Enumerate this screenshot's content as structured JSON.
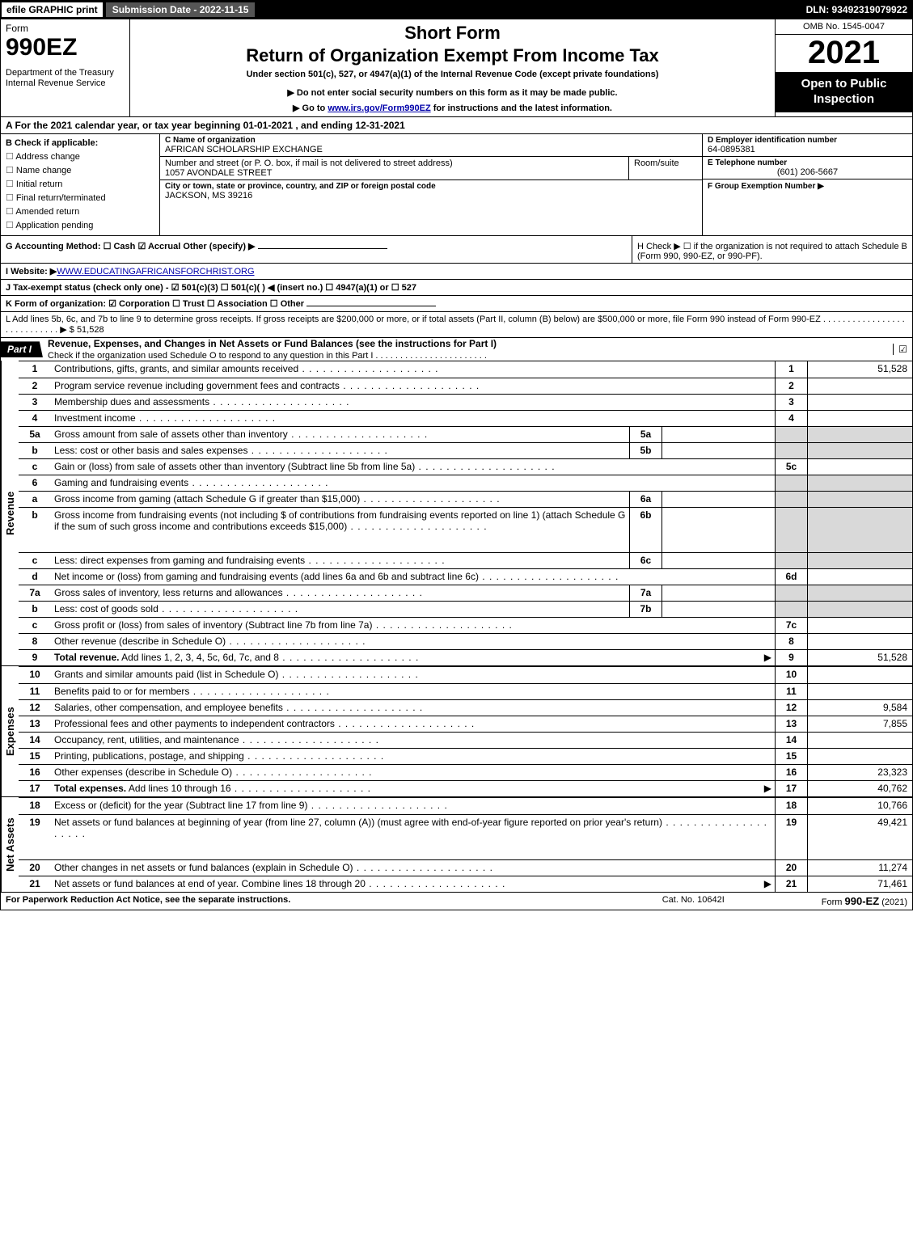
{
  "topbar": {
    "efile": "efile GRAPHIC print",
    "submission": "Submission Date - 2022-11-15",
    "dln": "DLN: 93492319079922"
  },
  "header": {
    "form_word": "Form",
    "form_number": "990EZ",
    "dept": "Department of the Treasury\nInternal Revenue Service",
    "short": "Short Form",
    "title": "Return of Organization Exempt From Income Tax",
    "sub1": "Under section 501(c), 527, or 4947(a)(1) of the Internal Revenue Code (except private foundations)",
    "sub2": "▶ Do not enter social security numbers on this form as it may be made public.",
    "sub3_pre": "▶ Go to ",
    "sub3_link": "www.irs.gov/Form990EZ",
    "sub3_post": " for instructions and the latest information.",
    "omb": "OMB No. 1545-0047",
    "year": "2021",
    "open": "Open to Public Inspection"
  },
  "A": "A  For the 2021 calendar year, or tax year beginning 01-01-2021 , and ending 12-31-2021",
  "B": {
    "label": "B  Check if applicable:",
    "opts": [
      "Address change",
      "Name change",
      "Initial return",
      "Final return/terminated",
      "Amended return",
      "Application pending"
    ]
  },
  "C": {
    "name_cap": "C Name of organization",
    "name": "AFRICAN SCHOLARSHIP EXCHANGE",
    "street_cap": "Number and street (or P. O. box, if mail is not delivered to street address)",
    "room_cap": "Room/suite",
    "street": "1057 AVONDALE STREET",
    "city_cap": "City or town, state or province, country, and ZIP or foreign postal code",
    "city": "JACKSON, MS  39216"
  },
  "D": {
    "cap": "D Employer identification number",
    "val": "64-0895381"
  },
  "E": {
    "cap": "E Telephone number",
    "val": "(601) 206-5667"
  },
  "F": {
    "cap": "F Group Exemption Number   ▶",
    "val": ""
  },
  "G": "G Accounting Method:   ☐ Cash   ☑ Accrual   Other (specify) ▶",
  "H": "H   Check ▶  ☐  if the organization is not required to attach Schedule B (Form 990, 990-EZ, or 990-PF).",
  "I": {
    "pre": "I Website: ▶",
    "link": "WWW.EDUCATINGAFRICANSFORCHRIST.ORG"
  },
  "J": "J Tax-exempt status (check only one) -  ☑ 501(c)(3)  ☐ 501(c)(  ) ◀ (insert no.)  ☐ 4947(a)(1) or  ☐ 527",
  "K": "K Form of organization:   ☑ Corporation   ☐ Trust   ☐ Association   ☐ Other",
  "L": {
    "text": "L Add lines 5b, 6c, and 7b to line 9 to determine gross receipts. If gross receipts are $200,000 or more, or if total assets (Part II, column (B) below) are $500,000 or more, file Form 990 instead of Form 990-EZ  .  .  .  .  .  .  .  .  .  .  .  .  .  .  .  .  .  .  .  .  .  .  .  .  .  .  .  .  ▶ $",
    "val": "51,528"
  },
  "part1": {
    "label": "Part I",
    "title": "Revenue, Expenses, and Changes in Net Assets or Fund Balances (see the instructions for Part I)",
    "sub": "Check if the organization used Schedule O to respond to any question in this Part I  .  .  .  .  .  .  .  .  .  .  .  .  .  .  .  .  .  .  .  .  .  .  ."
  },
  "revenue_label": "Revenue",
  "expenses_label": "Expenses",
  "netassets_label": "Net Assets",
  "rows_rev": [
    {
      "n": "1",
      "d": "Contributions, gifts, grants, and similar amounts received",
      "rn": "1",
      "v": "51,528"
    },
    {
      "n": "2",
      "d": "Program service revenue including government fees and contracts",
      "rn": "2",
      "v": ""
    },
    {
      "n": "3",
      "d": "Membership dues and assessments",
      "rn": "3",
      "v": ""
    },
    {
      "n": "4",
      "d": "Investment income",
      "rn": "4",
      "v": ""
    },
    {
      "n": "5a",
      "d": "Gross amount from sale of assets other than inventory",
      "sub": "5a",
      "shade": true
    },
    {
      "n": "b",
      "d": "Less: cost or other basis and sales expenses",
      "sub": "5b",
      "shade": true
    },
    {
      "n": "c",
      "d": "Gain or (loss) from sale of assets other than inventory (Subtract line 5b from line 5a)",
      "rn": "5c",
      "v": ""
    },
    {
      "n": "6",
      "d": "Gaming and fundraising events",
      "shade": true,
      "nornval": true
    },
    {
      "n": "a",
      "d": "Gross income from gaming (attach Schedule G if greater than $15,000)",
      "sub": "6a",
      "shade": true
    },
    {
      "n": "b",
      "d": "Gross income from fundraising events (not including $                    of contributions from fundraising events reported on line 1) (attach Schedule G if the sum of such gross income and contributions exceeds $15,000)",
      "sub": "6b",
      "shade": true,
      "tall": true
    },
    {
      "n": "c",
      "d": "Less: direct expenses from gaming and fundraising events",
      "sub": "6c",
      "shade": true
    },
    {
      "n": "d",
      "d": "Net income or (loss) from gaming and fundraising events (add lines 6a and 6b and subtract line 6c)",
      "rn": "6d",
      "v": ""
    },
    {
      "n": "7a",
      "d": "Gross sales of inventory, less returns and allowances",
      "sub": "7a",
      "shade": true
    },
    {
      "n": "b",
      "d": "Less: cost of goods sold",
      "sub": "7b",
      "shade": true
    },
    {
      "n": "c",
      "d": "Gross profit or (loss) from sales of inventory (Subtract line 7b from line 7a)",
      "rn": "7c",
      "v": ""
    },
    {
      "n": "8",
      "d": "Other revenue (describe in Schedule O)",
      "rn": "8",
      "v": ""
    },
    {
      "n": "9",
      "d": "Total revenue. Add lines 1, 2, 3, 4, 5c, 6d, 7c, and 8",
      "rn": "9",
      "v": "51,528",
      "bold": true,
      "arrow": true
    }
  ],
  "rows_exp": [
    {
      "n": "10",
      "d": "Grants and similar amounts paid (list in Schedule O)",
      "rn": "10",
      "v": ""
    },
    {
      "n": "11",
      "d": "Benefits paid to or for members",
      "rn": "11",
      "v": ""
    },
    {
      "n": "12",
      "d": "Salaries, other compensation, and employee benefits",
      "rn": "12",
      "v": "9,584"
    },
    {
      "n": "13",
      "d": "Professional fees and other payments to independent contractors",
      "rn": "13",
      "v": "7,855"
    },
    {
      "n": "14",
      "d": "Occupancy, rent, utilities, and maintenance",
      "rn": "14",
      "v": ""
    },
    {
      "n": "15",
      "d": "Printing, publications, postage, and shipping",
      "rn": "15",
      "v": ""
    },
    {
      "n": "16",
      "d": "Other expenses (describe in Schedule O)",
      "rn": "16",
      "v": "23,323"
    },
    {
      "n": "17",
      "d": "Total expenses. Add lines 10 through 16",
      "rn": "17",
      "v": "40,762",
      "bold": true,
      "arrow": true
    }
  ],
  "rows_na": [
    {
      "n": "18",
      "d": "Excess or (deficit) for the year (Subtract line 17 from line 9)",
      "rn": "18",
      "v": "10,766"
    },
    {
      "n": "19",
      "d": "Net assets or fund balances at beginning of year (from line 27, column (A)) (must agree with end-of-year figure reported on prior year's return)",
      "rn": "19",
      "v": "49,421",
      "tall": true,
      "shadepre": true
    },
    {
      "n": "20",
      "d": "Other changes in net assets or fund balances (explain in Schedule O)",
      "rn": "20",
      "v": "11,274"
    },
    {
      "n": "21",
      "d": "Net assets or fund balances at end of year. Combine lines 18 through 20",
      "rn": "21",
      "v": "71,461",
      "arrow": true
    }
  ],
  "footer": {
    "f1": "For Paperwork Reduction Act Notice, see the separate instructions.",
    "f2": "Cat. No. 10642I",
    "f3a": "Form ",
    "f3b": "990-EZ",
    "f3c": " (2021)"
  },
  "colors": {
    "black": "#000",
    "shade": "#d9d9d9",
    "link": "#0000aa"
  }
}
